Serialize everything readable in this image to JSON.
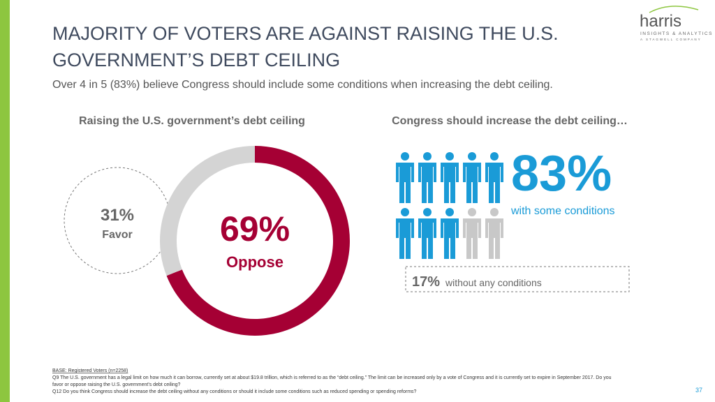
{
  "header": {
    "title_line1": "MAJORITY OF VOTERS ARE AGAINST RAISING THE U.S.",
    "title_line2": "GOVERNMENT’S DEBT CEILING",
    "subtitle": "Over 4 in 5 (83%) believe Congress should include some conditions when increasing the debt ceiling."
  },
  "logo": {
    "name": "harris",
    "tagline": "INSIGHTS & ANALYTICS",
    "company": "A STAGWELL COMPANY"
  },
  "chart_data": [
    {
      "type": "pie",
      "title": "Raising the U.S. government’s debt ceiling",
      "categories": [
        "Oppose",
        "Favor"
      ],
      "values": [
        69,
        31
      ],
      "value_labels": [
        "69%",
        "31%"
      ],
      "colors": [
        "#a50034",
        "#d4d4d4"
      ]
    },
    {
      "type": "pictogram",
      "title": "Congress should increase the debt ceiling…",
      "categories": [
        "with some conditions",
        "without any conditions"
      ],
      "values": [
        83,
        17
      ],
      "value_labels": [
        "83%",
        "17%"
      ],
      "colors": [
        "#1a9bd7",
        "#c8c8c8"
      ]
    }
  ],
  "footer": {
    "base": "BASE: Registered Voters (n=2258)",
    "q9_line1": "Q9 The U.S. government has a legal limit on how much it can borrow, currently set at about $19.8 trillion, which is referred to as the “debt ceiling.” The limit can be increased only by a vote of Congress and it is currently set to expire in September 2017. Do you",
    "q9_line2": "favor or oppose raising the U.S. government's debt ceiling?",
    "q12": "Q12 Do you think Congress should increase the debt ceiling without any conditions or should it include some conditions such as reduced spending or spending reforms?",
    "page": "37"
  }
}
